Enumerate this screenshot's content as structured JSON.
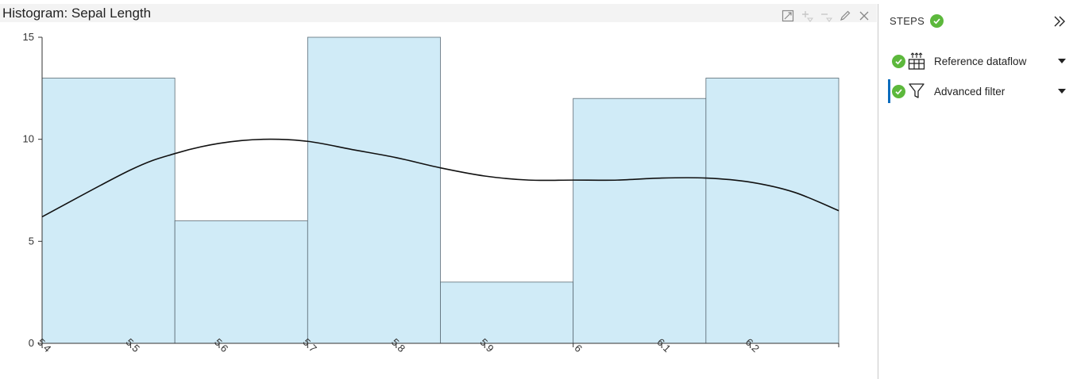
{
  "chart_panel": {
    "title": "Histogram: Sepal Length",
    "tools": [
      {
        "name": "expand-icon",
        "enabled": true
      },
      {
        "name": "add-filter-icon",
        "enabled": false
      },
      {
        "name": "remove-filter-icon",
        "enabled": false
      },
      {
        "name": "edit-icon",
        "enabled": true
      },
      {
        "name": "close-icon",
        "enabled": true
      }
    ]
  },
  "chart_data": {
    "type": "bar",
    "title": "Histogram: Sepal Length",
    "bins": [
      {
        "start": 5.4,
        "end": 5.55,
        "count": 13
      },
      {
        "start": 5.55,
        "end": 5.7,
        "count": 6
      },
      {
        "start": 5.7,
        "end": 5.85,
        "count": 15
      },
      {
        "start": 5.85,
        "end": 6.0,
        "count": 3
      },
      {
        "start": 6.0,
        "end": 6.15,
        "count": 12
      },
      {
        "start": 6.15,
        "end": 6.3,
        "count": 13
      }
    ],
    "xlim": [
      5.4,
      6.3
    ],
    "ylim": [
      0,
      15
    ],
    "xticks": [
      "5.4",
      "5.5",
      "5.6",
      "5.7",
      "5.8",
      "5.9",
      "6",
      "6.1",
      "6.2"
    ],
    "yticks": [
      "0",
      "5",
      "10",
      "15"
    ],
    "density_curve": {
      "x": [
        5.4,
        5.5,
        5.55,
        5.6,
        5.65,
        5.7,
        5.75,
        5.8,
        5.85,
        5.9,
        5.95,
        6.0,
        6.05,
        6.1,
        6.15,
        6.2,
        6.25,
        6.3
      ],
      "y": [
        6.2,
        8.5,
        9.3,
        9.8,
        10.0,
        9.9,
        9.5,
        9.1,
        8.6,
        8.2,
        8.0,
        8.0,
        8.0,
        8.1,
        8.1,
        7.9,
        7.4,
        6.5
      ]
    },
    "bar_color": "#d0ebf7",
    "bar_stroke": "#5a6b75",
    "curve_color": "#111111",
    "grid": false
  },
  "steps": {
    "title": "STEPS",
    "items": [
      {
        "label": "Reference dataflow",
        "icon": "reference-dataflow-icon",
        "active": false
      },
      {
        "label": "Advanced filter",
        "icon": "filter-icon",
        "active": true
      }
    ]
  },
  "colors": {
    "success": "#5cb83c",
    "accent": "#0b6cbd"
  }
}
